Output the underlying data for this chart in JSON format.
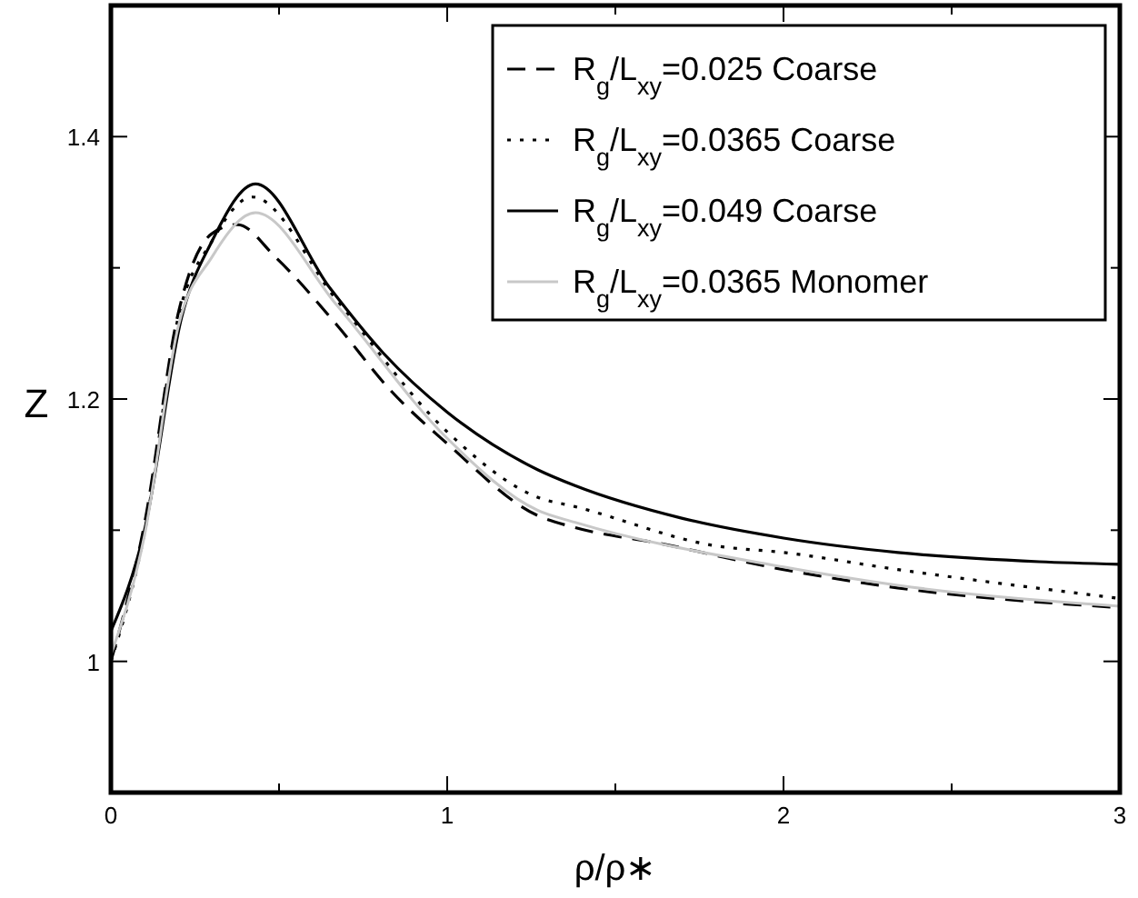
{
  "chart_data": {
    "type": "line",
    "xlabel": "ρ/ρ∗",
    "ylabel": "Z",
    "xlim": [
      0,
      3
    ],
    "ylim": [
      0.9,
      1.5
    ],
    "xticks": [
      0,
      {
        "value": 0.5,
        "label": null
      },
      1,
      {
        "value": 1.5,
        "label": null
      },
      2,
      {
        "value": 2.5,
        "label": null
      },
      3
    ],
    "yticks": [
      {
        "value": 0.9,
        "label": null
      },
      1,
      {
        "value": 1.1,
        "label": null
      },
      1.2,
      {
        "value": 1.3,
        "label": null
      },
      1.4,
      {
        "value": 1.5,
        "label": null
      }
    ],
    "grid": false,
    "legend": "top right",
    "marker": "none",
    "series": [
      {
        "name": "R$_{g}$/L$_{xy}$=0.025 Coarse",
        "color": "#000000",
        "line_style": "dashed",
        "x": [
          0,
          0.1,
          0.2,
          0.3,
          0.376,
          0.49,
          0.67,
          0.83,
          1.0,
          1.27,
          1.38,
          1.63,
          2.0,
          2.34,
          3.0
        ],
        "values": [
          1.0,
          1.105,
          1.265,
          1.326,
          1.333,
          1.308,
          1.257,
          1.207,
          1.166,
          1.111,
          1.102,
          1.09,
          1.07,
          1.056,
          1.041
        ]
      },
      {
        "name": "R$_{g}$/L$_{xy}$=0.0365 Coarse",
        "color": "#000000",
        "line_style": "dotted",
        "x": [
          0,
          0.1,
          0.2,
          0.3,
          0.42,
          0.67,
          1.0,
          1.27,
          1.38,
          1.8,
          2.0,
          2.34,
          3.0
        ],
        "values": [
          1.0,
          1.098,
          1.262,
          1.32,
          1.354,
          1.276,
          1.175,
          1.125,
          1.118,
          1.088,
          1.083,
          1.07,
          1.048
        ]
      },
      {
        "name": "R$_{g}$/L$_{xy}$=0.049 Coarse",
        "color": "#000000",
        "line_style": "solid",
        "x": [
          0,
          0.1,
          0.21,
          0.3,
          0.43,
          0.65,
          0.81,
          1.0,
          1.27,
          1.38,
          1.7,
          2.0,
          2.34,
          2.76,
          3.0
        ],
        "values": [
          1.023,
          1.1,
          1.262,
          1.32,
          1.364,
          1.285,
          1.235,
          1.19,
          1.146,
          1.134,
          1.109,
          1.094,
          1.083,
          1.076,
          1.074
        ]
      },
      {
        "name": "R$_{g}$/L$_{xy}$=0.0365 Monomer",
        "color": "#c8c8c8",
        "line_style": "solid",
        "x": [
          0,
          0.1,
          0.2,
          0.3,
          0.43,
          0.67,
          1.0,
          1.27,
          1.38,
          2.0,
          2.34,
          3.0
        ],
        "values": [
          1.005,
          1.096,
          1.255,
          1.308,
          1.342,
          1.272,
          1.17,
          1.115,
          1.106,
          1.072,
          1.058,
          1.042
        ]
      }
    ]
  }
}
